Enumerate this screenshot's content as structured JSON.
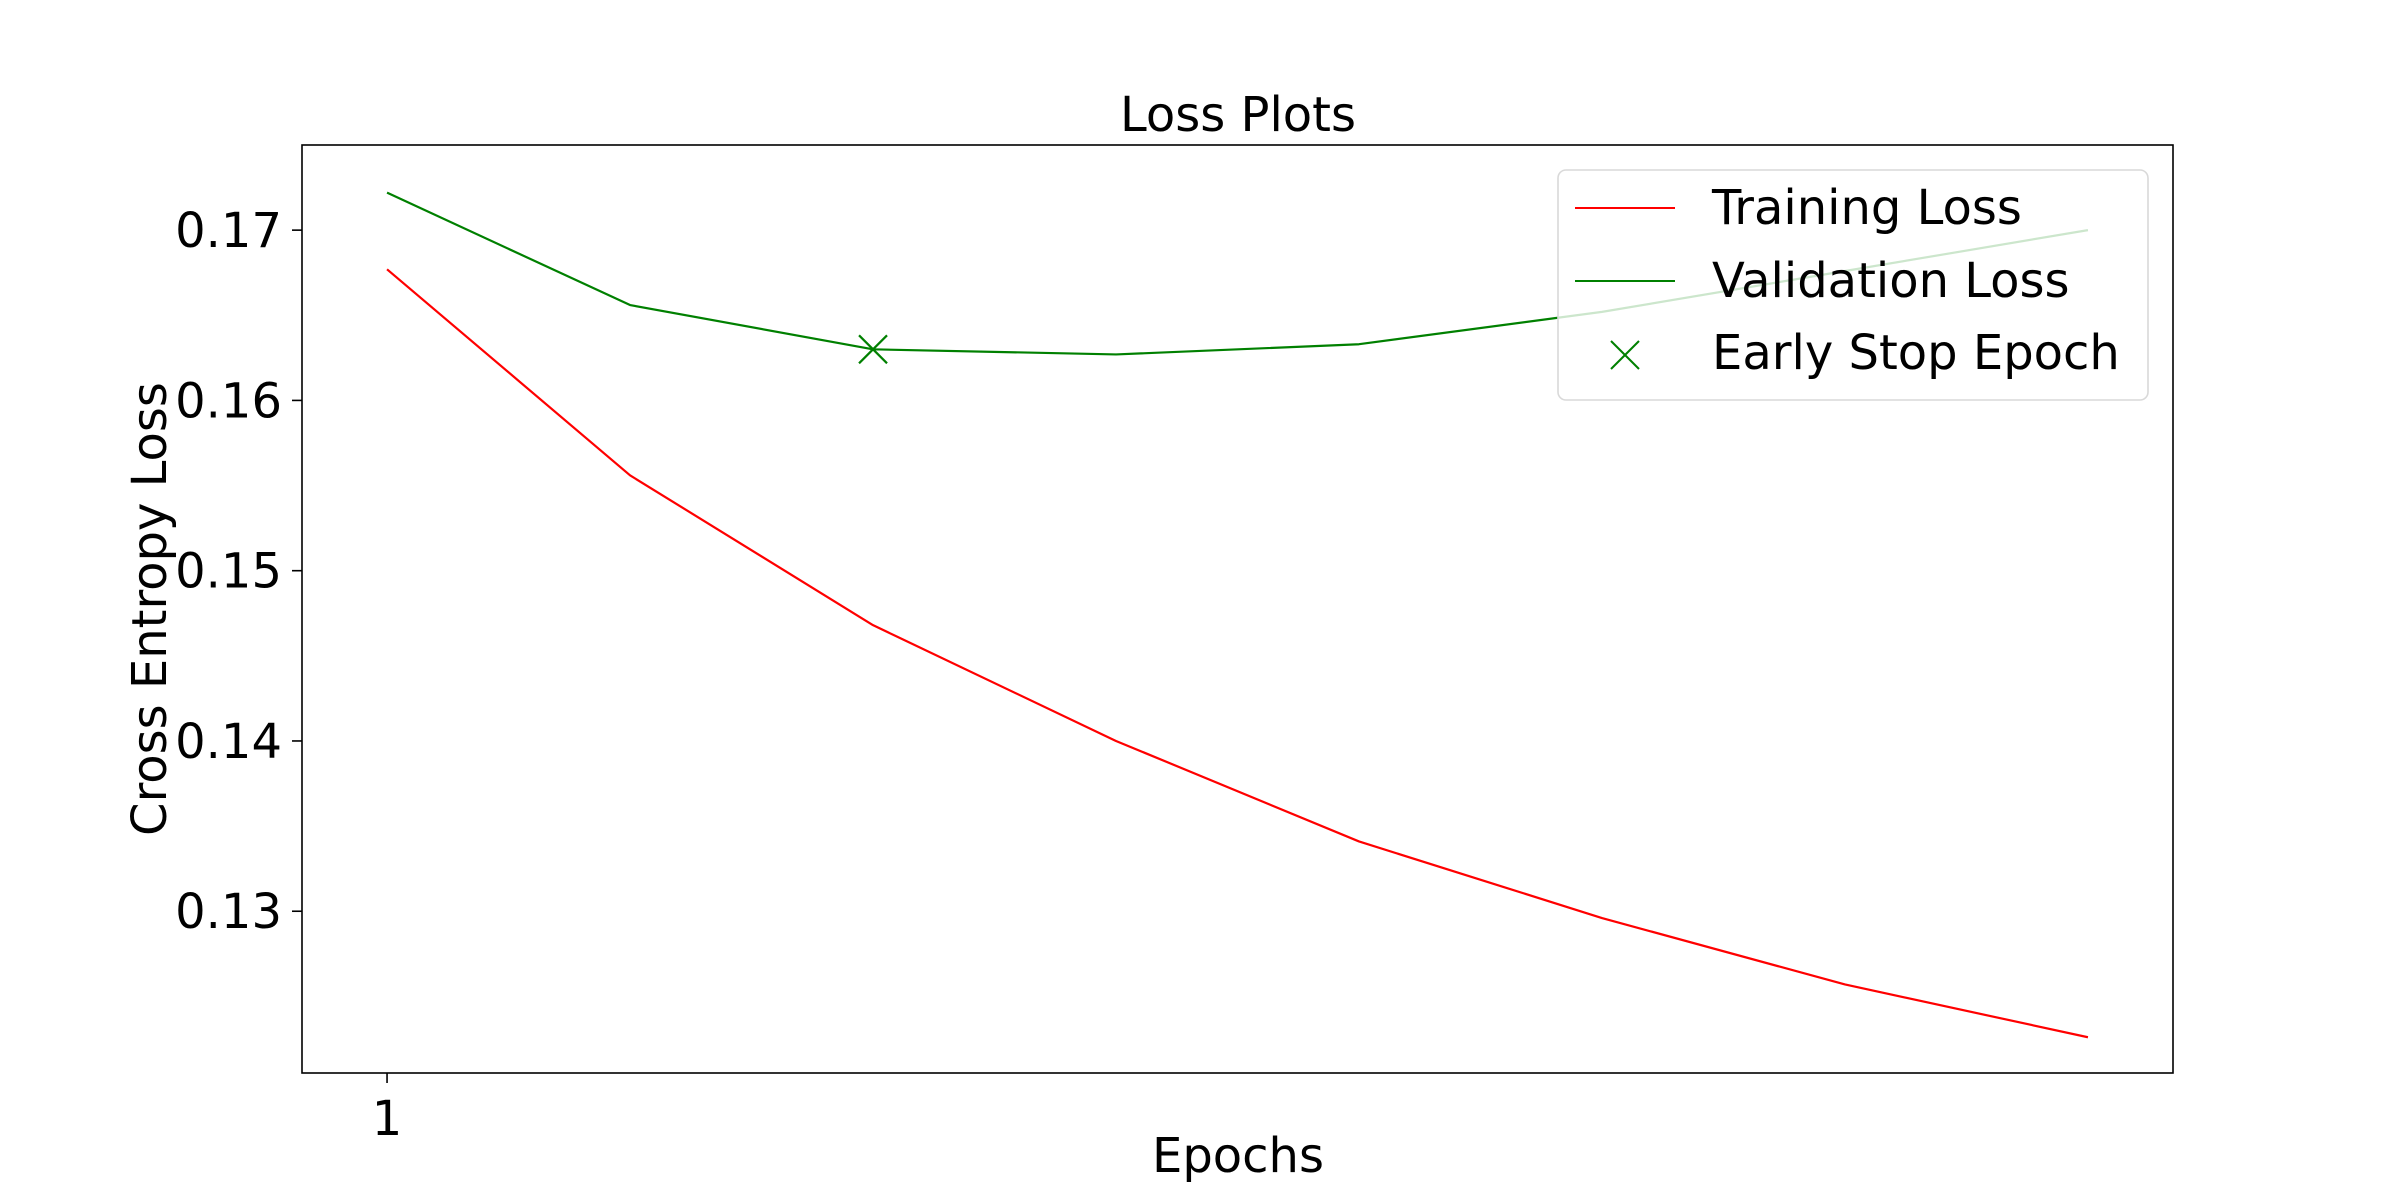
{
  "chart_data": {
    "type": "line",
    "title": "Loss Plots",
    "xlabel": "Epochs",
    "ylabel": "Cross Entropy Loss",
    "x": [
      1,
      2,
      3,
      4,
      5,
      6,
      7,
      8
    ],
    "xticks": [
      1
    ],
    "xlim": [
      0.65,
      8.35
    ],
    "ylim": [
      0.1205,
      0.175
    ],
    "yticks": [
      0.13,
      0.14,
      0.15,
      0.16,
      0.17
    ],
    "ytick_labels": [
      "0.13",
      "0.14",
      "0.15",
      "0.16",
      "0.17"
    ],
    "grid": false,
    "legend_position": "top-right",
    "series": [
      {
        "name": "Training Loss",
        "color": "#ff0000",
        "values": [
          0.1677,
          0.1556,
          0.1468,
          0.14,
          0.1341,
          0.1296,
          0.1257,
          0.1226
        ]
      },
      {
        "name": "Validation Loss",
        "color": "#008000",
        "values": [
          0.1722,
          0.1656,
          0.163,
          0.1627,
          0.1633,
          0.1652,
          0.1676,
          0.17
        ]
      }
    ],
    "markers": [
      {
        "name": "Early Stop Epoch",
        "color": "#008000",
        "symbol": "x",
        "x": 3,
        "y": 0.163
      }
    ]
  }
}
